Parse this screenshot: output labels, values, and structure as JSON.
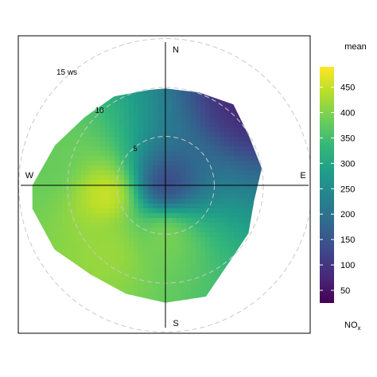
{
  "chart_data": {
    "type": "heatmap",
    "subtype": "polar-plot",
    "variable": "NOx",
    "statistic": "mean",
    "legend": {
      "title": "mean",
      "label_main": "NO",
      "label_sub": "x",
      "range": [
        25,
        490
      ],
      "ticks": [
        50,
        100,
        150,
        200,
        250,
        300,
        350,
        400,
        450
      ],
      "tick_labels": [
        "50",
        "100",
        "150",
        "200",
        "250",
        "300",
        "350",
        "400",
        "450"
      ],
      "colormap": [
        "#440154",
        "#482878",
        "#3e4989",
        "#31688e",
        "#26828e",
        "#1f9e89",
        "#35b779",
        "#6ece58",
        "#b5de2b",
        "#fde725"
      ]
    },
    "compass": [
      "N",
      "E",
      "S",
      "W"
    ],
    "radial_axis": {
      "unit": "ws",
      "max": 15,
      "rings": [
        5,
        10,
        15
      ],
      "ring_labels": [
        "5",
        "10",
        "15 ws"
      ]
    },
    "grid": true,
    "boundary_r_by_dir": [
      {
        "deg": 0,
        "r": 9.9
      },
      {
        "deg": 20,
        "r": 10.1
      },
      {
        "deg": 40,
        "r": 10.8
      },
      {
        "deg": 60,
        "r": 9.9
      },
      {
        "deg": 80,
        "r": 10.0
      },
      {
        "deg": 100,
        "r": 9.2
      },
      {
        "deg": 120,
        "r": 9.8
      },
      {
        "deg": 140,
        "r": 10.2
      },
      {
        "deg": 160,
        "r": 12.1
      },
      {
        "deg": 180,
        "r": 12.0
      },
      {
        "deg": 200,
        "r": 11.8
      },
      {
        "deg": 220,
        "r": 11.9
      },
      {
        "deg": 240,
        "r": 13.1
      },
      {
        "deg": 260,
        "r": 13.8
      },
      {
        "deg": 270,
        "r": 13.6
      },
      {
        "deg": 290,
        "r": 12.0
      },
      {
        "deg": 310,
        "r": 10.8
      },
      {
        "deg": 330,
        "r": 10.5
      },
      {
        "deg": 350,
        "r": 9.9
      }
    ],
    "field_peaks": [
      {
        "deg": 0,
        "r": 0,
        "value": 120
      },
      {
        "deg": 45,
        "r": 12,
        "value": 80
      },
      {
        "deg": 260,
        "r": 6,
        "value": 460
      },
      {
        "deg": 180,
        "r": 5,
        "value": 400
      },
      {
        "deg": 220,
        "r": 9,
        "value": 420
      },
      {
        "deg": 280,
        "r": 12,
        "value": 380
      }
    ]
  }
}
